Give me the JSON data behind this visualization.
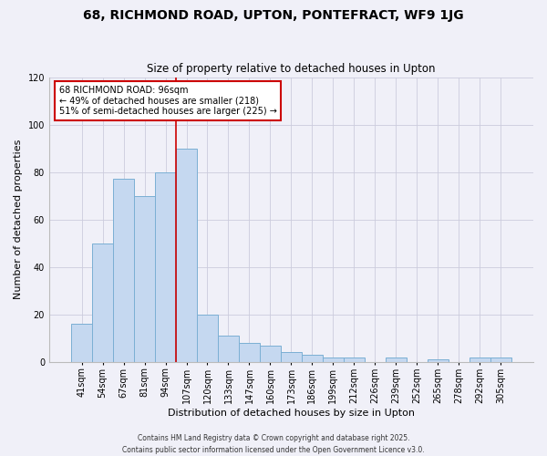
{
  "title_line1": "68, RICHMOND ROAD, UPTON, PONTEFRACT, WF9 1JG",
  "title_line2": "Size of property relative to detached houses in Upton",
  "xlabel": "Distribution of detached houses by size in Upton",
  "ylabel": "Number of detached properties",
  "categories": [
    "41sqm",
    "54sqm",
    "67sqm",
    "81sqm",
    "94sqm",
    "107sqm",
    "120sqm",
    "133sqm",
    "147sqm",
    "160sqm",
    "173sqm",
    "186sqm",
    "199sqm",
    "212sqm",
    "226sqm",
    "239sqm",
    "252sqm",
    "265sqm",
    "278sqm",
    "292sqm",
    "305sqm"
  ],
  "values": [
    16,
    50,
    77,
    70,
    80,
    90,
    20,
    11,
    8,
    7,
    4,
    3,
    2,
    2,
    0,
    2,
    0,
    1,
    0,
    2,
    2
  ],
  "bar_color": "#c5d8f0",
  "bar_edge_color": "#7bafd4",
  "vline_x": 4.5,
  "vline_color": "#cc0000",
  "annotation_title": "68 RICHMOND ROAD: 96sqm",
  "annotation_line2": "← 49% of detached houses are smaller (218)",
  "annotation_line3": "51% of semi-detached houses are larger (225) →",
  "annotation_box_color": "#ffffff",
  "annotation_box_edge": "#cc0000",
  "ylim": [
    0,
    120
  ],
  "yticks": [
    0,
    20,
    40,
    60,
    80,
    100,
    120
  ],
  "footer_line1": "Contains HM Land Registry data © Crown copyright and database right 2025.",
  "footer_line2": "Contains public sector information licensed under the Open Government Licence v3.0.",
  "background_color": "#f0f0f8",
  "grid_color": "#ccccdd",
  "title_fontsize": 10,
  "subtitle_fontsize": 8.5,
  "xlabel_fontsize": 8,
  "ylabel_fontsize": 8,
  "tick_fontsize": 7,
  "footer_fontsize": 5.5
}
